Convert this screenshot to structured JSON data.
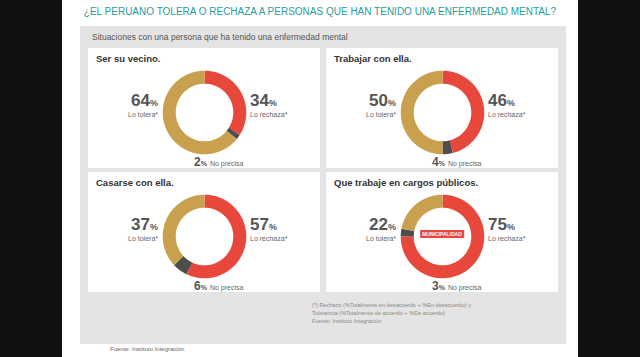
{
  "title": "¿EL PERUANO TOLERA O RECHAZA A PERSONAS QUE HAN TENIDO UNA ENFERMEDAD MENTAL?",
  "subtitle": "Situaciones con una persona que ha tenido una enfermedad mental",
  "chart_data": [
    {
      "type": "pie",
      "title": "Ser su vecino.",
      "categories": [
        "Lo tolera*",
        "Lo rechaza*",
        "No precisa"
      ],
      "values": [
        64,
        34,
        2
      ],
      "value_labels": [
        "64%",
        "34%",
        "2%"
      ],
      "colors": [
        "#c8a04e",
        "#e8473b",
        "#4d4d4d"
      ],
      "data_labels": true
    },
    {
      "type": "pie",
      "title": "Trabajar con ella.",
      "categories": [
        "Lo tolera*",
        "Lo rechaza*",
        "No precisa"
      ],
      "values": [
        50,
        46,
        4
      ],
      "value_labels": [
        "50%",
        "46%",
        "4%"
      ],
      "colors": [
        "#c8a04e",
        "#e8473b",
        "#4d4d4d"
      ],
      "data_labels": true
    },
    {
      "type": "pie",
      "title": "Casarse con ella.",
      "categories": [
        "Lo tolera*",
        "Lo rechaza*",
        "No precisa"
      ],
      "values": [
        37,
        57,
        6
      ],
      "value_labels": [
        "37%",
        "57%",
        "6%"
      ],
      "colors": [
        "#c8a04e",
        "#e8473b",
        "#4d4d4d"
      ],
      "data_labels": true
    },
    {
      "type": "pie",
      "title": "Que trabaje en cargos públicos.",
      "categories": [
        "Lo tolera*",
        "Lo rechaza*",
        "No precisa"
      ],
      "values": [
        22,
        75,
        3
      ],
      "value_labels": [
        "22%",
        "75%",
        "3%"
      ],
      "colors": [
        "#c8a04e",
        "#e8473b",
        "#4d4d4d"
      ],
      "data_labels": true,
      "annotations": [
        "MUNICIPALIDAD"
      ]
    }
  ],
  "notes": [
    "(*) Rechazo (%Totalmente en desacuerdo + %En desacuerdo) y",
    "Tolerancia (%Totalmente de acuerdo + %De acuerdo)",
    "Fuente: Instituto Integración"
  ],
  "source": "Fuente: Instituto Integración"
}
